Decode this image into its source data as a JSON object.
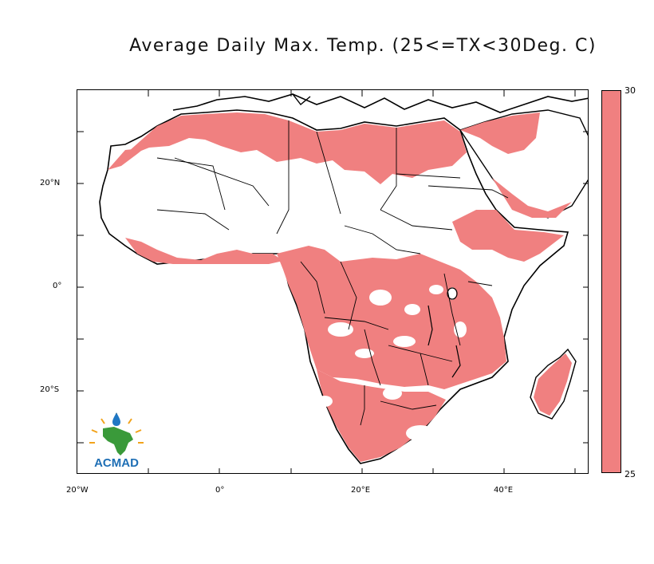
{
  "title": "Average Daily Max. Temp. (25<=TX<30Deg. C)",
  "fill_color": "#f08080",
  "colorbar": {
    "max_label": "30",
    "min_label": "25",
    "color": "#f08080"
  },
  "axes": {
    "x_ticks": [
      "20°W",
      "0°",
      "20°E",
      "40°E"
    ],
    "y_ticks": [
      "20°N",
      "0°",
      "20°S"
    ]
  },
  "logo": {
    "text": "ACMAD",
    "icon": "africa-sun-logo"
  }
}
